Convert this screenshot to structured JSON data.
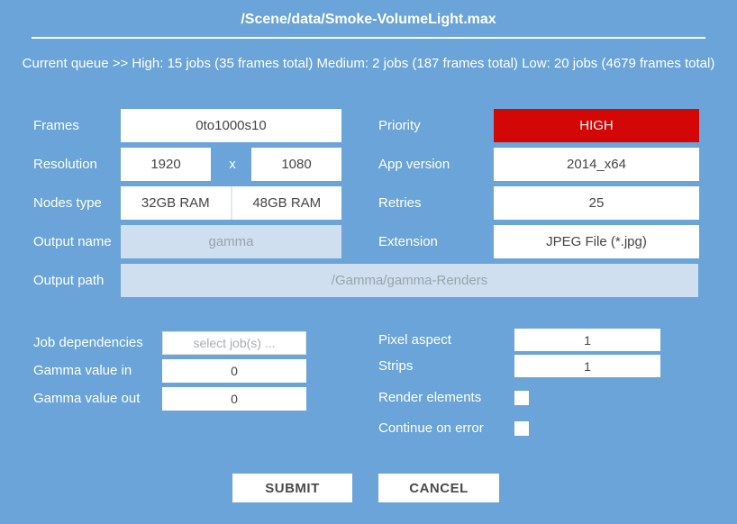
{
  "title": "/Scene/data/Smoke-VolumeLight.max",
  "queue_status": "Current queue >> High: 15 jobs (35 frames total) Medium: 2 jobs (187 frames total) Low: 20 jobs (4679 frames total)",
  "colors": {
    "background": "#6aa4d8",
    "priority_high": "#d40707",
    "disabled_field": "#cfdfef",
    "field_white": "#ffffff"
  },
  "form": {
    "frames": {
      "label": "Frames",
      "value": "0to1000s10"
    },
    "resolution": {
      "label": "Resolution",
      "width": "1920",
      "separator": "x",
      "height": "1080"
    },
    "nodes_type": {
      "label": "Nodes type",
      "options": [
        "32GB RAM",
        "48GB RAM"
      ]
    },
    "output_name": {
      "label": "Output name",
      "placeholder": "gamma"
    },
    "output_path": {
      "label": "Output path",
      "placeholder": "/Gamma/gamma-Renders"
    },
    "priority": {
      "label": "Priority",
      "value": "HIGH"
    },
    "app_version": {
      "label": "App version",
      "value": "2014_x64"
    },
    "retries": {
      "label": "Retries",
      "value": "25"
    },
    "extension": {
      "label": "Extension",
      "value": "JPEG File (*.jpg)"
    },
    "job_dependencies": {
      "label": "Job dependencies",
      "placeholder": "select job(s) ..."
    },
    "gamma_value_in": {
      "label": "Gamma value in",
      "value": "0"
    },
    "gamma_value_out": {
      "label": "Gamma value out",
      "value": "0"
    },
    "pixel_aspect": {
      "label": "Pixel aspect",
      "value": "1"
    },
    "strips": {
      "label": "Strips",
      "value": "1"
    },
    "render_elements": {
      "label": "Render elements",
      "checked": false
    },
    "continue_on_error": {
      "label": "Continue on error",
      "checked": false
    }
  },
  "actions": {
    "submit": "SUBMIT",
    "cancel": "CANCEL"
  }
}
